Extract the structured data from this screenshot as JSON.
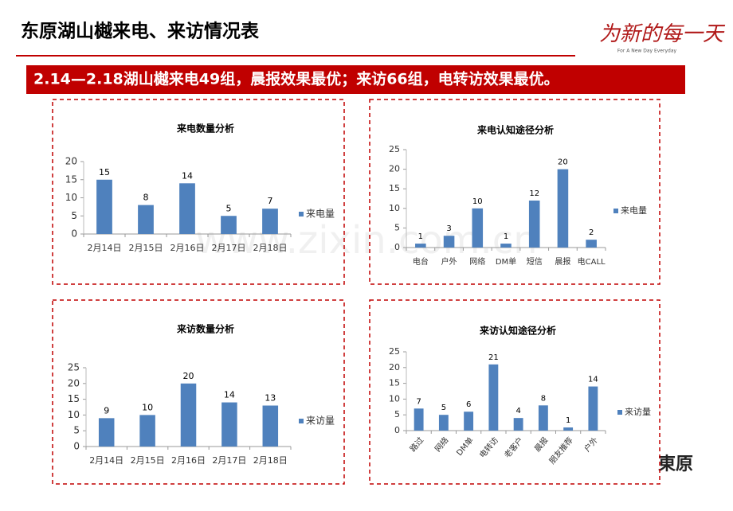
{
  "header": {
    "title": "东原湖山樾来电、来访情况表",
    "logo": "为新的每一天",
    "logo_sub": "For A New Day Everyday",
    "banner": "2.14—2.18湖山樾来电49组，晨报效果最优；来访66组，电转访效果最优。",
    "watermark": "www.zixin.com.cn",
    "corner_logo": "東原"
  },
  "chart_data": [
    {
      "type": "bar",
      "title": "来电数量分析",
      "categories": [
        "2月14日",
        "2月15日",
        "2月16日",
        "2月17日",
        "2月18日"
      ],
      "series": [
        {
          "name": "来电量",
          "color": "#4f81bd",
          "values": [
            15,
            8,
            14,
            5,
            7
          ]
        }
      ],
      "ylim": [
        0,
        20
      ],
      "yticks": [
        0,
        5,
        10,
        15,
        20
      ]
    },
    {
      "type": "bar",
      "title": "来电认知途径分析",
      "categories": [
        "电台",
        "户外",
        "网络",
        "DM单",
        "短信",
        "晨报",
        "电CALL"
      ],
      "series": [
        {
          "name": "来电量",
          "color": "#4f81bd",
          "values": [
            1,
            3,
            10,
            1,
            12,
            20,
            2
          ]
        }
      ],
      "ylim": [
        0,
        25
      ],
      "yticks": [
        0,
        5,
        10,
        15,
        20,
        25
      ]
    },
    {
      "type": "bar",
      "title": "来访数量分析",
      "categories": [
        "2月14日",
        "2月15日",
        "2月16日",
        "2月17日",
        "2月18日"
      ],
      "series": [
        {
          "name": "来访量",
          "color": "#4f81bd",
          "values": [
            9,
            10,
            20,
            14,
            13
          ]
        }
      ],
      "ylim": [
        0,
        25
      ],
      "yticks": [
        0,
        5,
        10,
        15,
        20,
        25
      ]
    },
    {
      "type": "bar",
      "title": "来访认知途径分析",
      "categories": [
        "路过",
        "网络",
        "DM单",
        "电转访",
        "老客户",
        "晨报",
        "朋友推荐",
        "户外"
      ],
      "series": [
        {
          "name": "来访量",
          "color": "#4f81bd",
          "values": [
            7,
            5,
            6,
            21,
            4,
            8,
            1,
            14
          ]
        }
      ],
      "ylim": [
        0,
        25
      ],
      "yticks": [
        0,
        5,
        10,
        15,
        20,
        25
      ],
      "rotate_labels": true
    }
  ]
}
